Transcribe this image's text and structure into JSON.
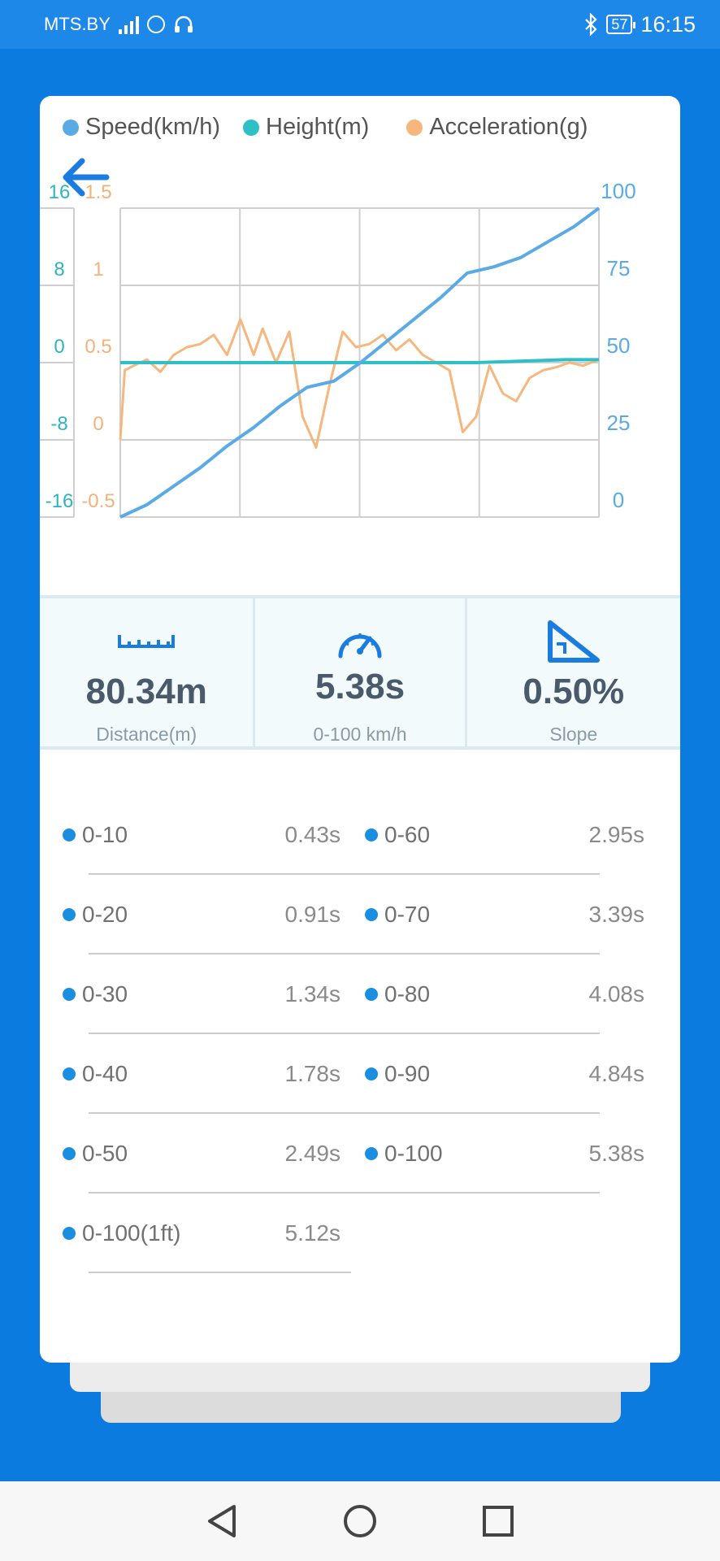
{
  "status": {
    "carrier": "MTS.BY",
    "battery": "57",
    "time": "16:15"
  },
  "legend": [
    {
      "label": "Speed(km/h)",
      "color": "#5aaae6"
    },
    {
      "label": "Height(m)",
      "color": "#2ec0c6"
    },
    {
      "label": "Acceleration(g)",
      "color": "#f6b77f"
    }
  ],
  "chart_data": {
    "type": "line",
    "axes": {
      "height_ticks": [
        "16",
        "8",
        "0",
        "-8",
        "-16"
      ],
      "acceleration_ticks": [
        "1.5",
        "1",
        "0.5",
        "0",
        "-0.5"
      ],
      "speed_ticks": [
        "100",
        "75",
        "50",
        "25",
        "0"
      ],
      "speed_range": [
        0,
        100
      ],
      "acceleration_range": [
        -0.5,
        1.5
      ],
      "height_range": [
        -16,
        16
      ]
    },
    "grid": true,
    "series": [
      {
        "name": "Speed(km/h)",
        "color": "#5aaae6",
        "x": [
          0,
          0.3,
          0.6,
          0.9,
          1.2,
          1.5,
          1.8,
          2.1,
          2.4,
          2.7,
          3.0,
          3.3,
          3.6,
          3.9,
          4.2,
          4.5,
          4.8,
          5.1,
          5.38
        ],
        "y": [
          0,
          4,
          10,
          16,
          23,
          29,
          36,
          42,
          44,
          50,
          57,
          64,
          71,
          79,
          81,
          84,
          89,
          94,
          100
        ]
      },
      {
        "name": "Height(m)",
        "color": "#2ec0c6",
        "x": [
          0,
          1,
          2,
          3,
          4,
          5,
          5.38
        ],
        "y": [
          0,
          0,
          0,
          0,
          0,
          0.3,
          0.3
        ]
      },
      {
        "name": "Acceleration(g)",
        "color": "#f6b77f",
        "x": [
          0,
          0.05,
          0.15,
          0.3,
          0.45,
          0.6,
          0.75,
          0.9,
          1.05,
          1.2,
          1.35,
          1.5,
          1.6,
          1.75,
          1.9,
          2.05,
          2.2,
          2.35,
          2.5,
          2.65,
          2.8,
          2.95,
          3.1,
          3.25,
          3.4,
          3.55,
          3.7,
          3.85,
          4.0,
          4.15,
          4.3,
          4.45,
          4.6,
          4.75,
          4.9,
          5.05,
          5.2,
          5.38
        ],
        "y": [
          0,
          0.45,
          0.48,
          0.52,
          0.44,
          0.55,
          0.6,
          0.62,
          0.68,
          0.55,
          0.78,
          0.55,
          0.72,
          0.5,
          0.7,
          0.15,
          -0.05,
          0.35,
          0.7,
          0.6,
          0.62,
          0.68,
          0.58,
          0.65,
          0.55,
          0.5,
          0.45,
          0.05,
          0.15,
          0.48,
          0.3,
          0.25,
          0.4,
          0.45,
          0.47,
          0.5,
          0.48,
          0.52
        ]
      }
    ]
  },
  "stats": [
    {
      "icon": "ruler-icon",
      "value": "80.34m",
      "label": "Distance(m)"
    },
    {
      "icon": "speedometer-icon",
      "value": "5.38s",
      "label": "0-100 km/h"
    },
    {
      "icon": "slope-icon",
      "value": "0.50%",
      "label": "Slope"
    }
  ],
  "splits": [
    [
      {
        "name": "0-10",
        "time": "0.43s"
      },
      {
        "name": "0-60",
        "time": "2.95s"
      }
    ],
    [
      {
        "name": "0-20",
        "time": "0.91s"
      },
      {
        "name": "0-70",
        "time": "3.39s"
      }
    ],
    [
      {
        "name": "0-30",
        "time": "1.34s"
      },
      {
        "name": "0-80",
        "time": "4.08s"
      }
    ],
    [
      {
        "name": "0-40",
        "time": "1.78s"
      },
      {
        "name": "0-90",
        "time": "4.84s"
      }
    ],
    [
      {
        "name": "0-50",
        "time": "2.49s"
      },
      {
        "name": "0-100",
        "time": "5.38s"
      }
    ],
    [
      {
        "name": "0-100(1ft)",
        "time": "5.12s"
      }
    ]
  ],
  "nav": [
    "back-nav-icon",
    "home-nav-icon",
    "recents-nav-icon"
  ]
}
